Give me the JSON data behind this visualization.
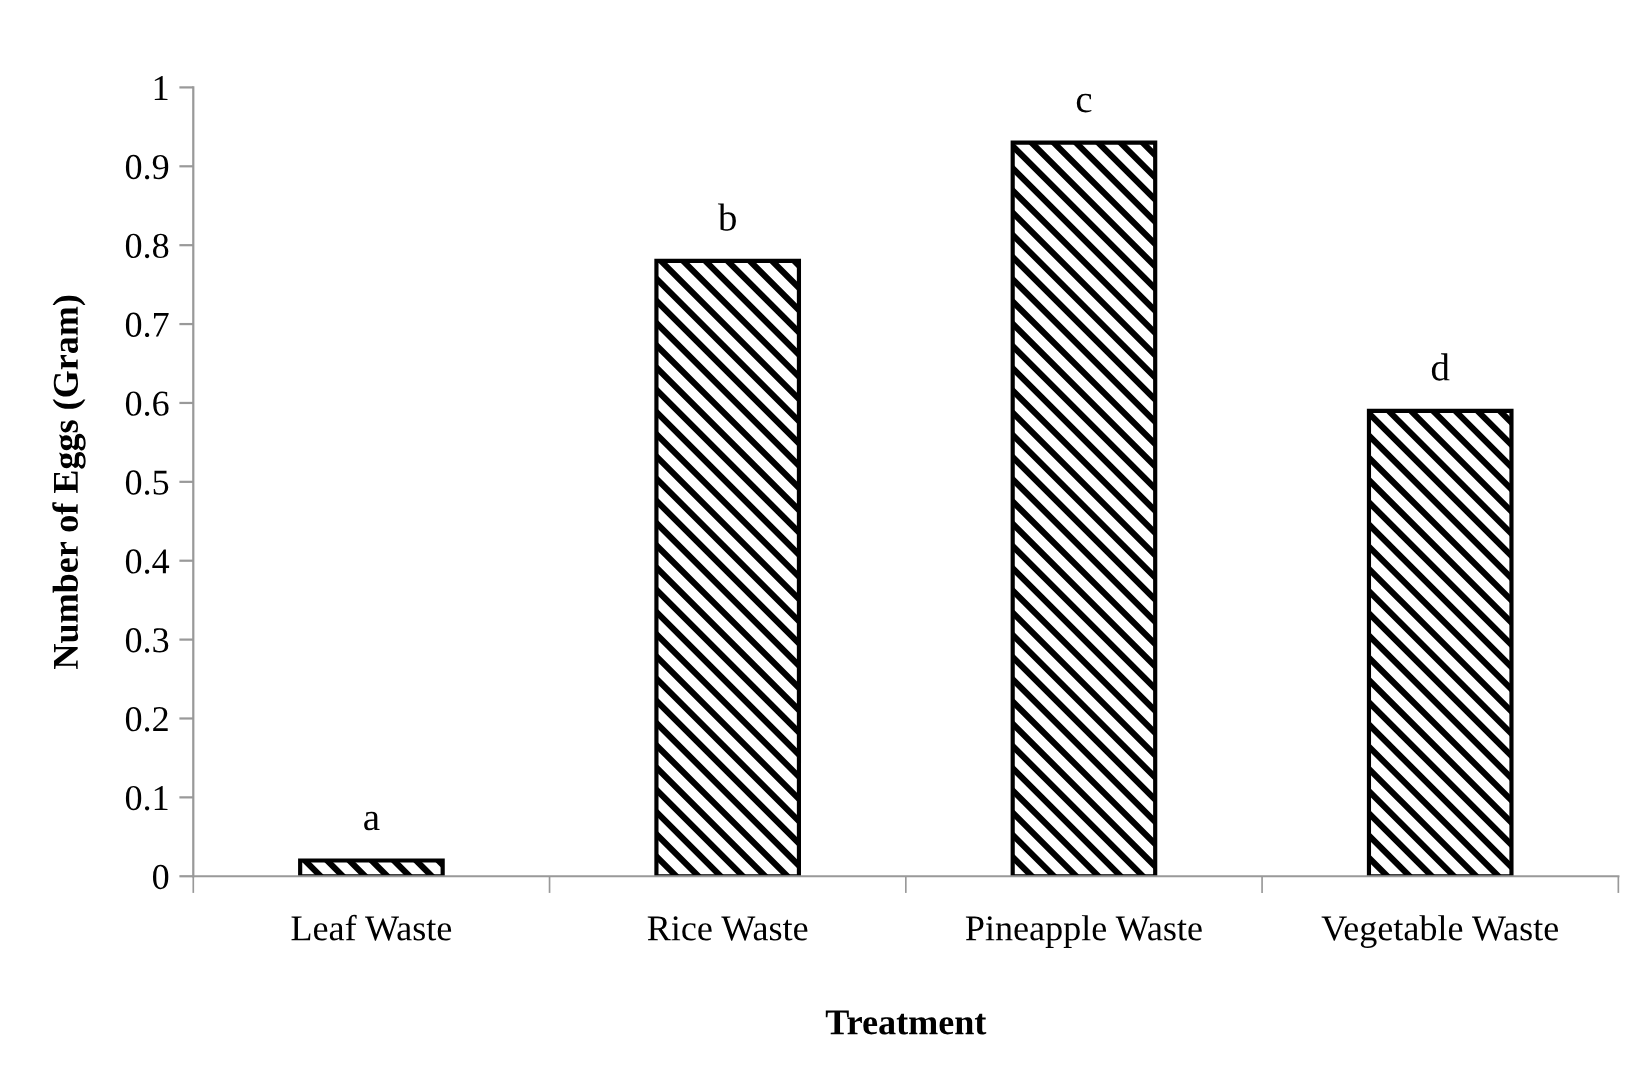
{
  "chart_data": {
    "type": "bar",
    "xlabel": "Treatment",
    "ylabel": "Number of Eggs (Gram)",
    "categories": [
      "Leaf Waste",
      "Rice Waste",
      "Pineapple Waste",
      "Vegetable Waste"
    ],
    "values": [
      0.02,
      0.78,
      0.93,
      0.59
    ],
    "color": "#000000",
    "ylim": [
      0,
      1
    ],
    "yticks": [
      0,
      0.1,
      0.2,
      0.3,
      0.4,
      0.5,
      0.6,
      0.7,
      0.8,
      0.9,
      1
    ],
    "grid": false,
    "annotations": [
      {
        "text": "a",
        "x": "Leaf Waste",
        "y": 0.02
      },
      {
        "text": "b",
        "x": "Rice Waste",
        "y": 0.78
      },
      {
        "text": "c",
        "x": "Pineapple Waste",
        "y": 0.93
      },
      {
        "text": "d",
        "x": "Vegetable Waste",
        "y": 0.59
      }
    ]
  }
}
